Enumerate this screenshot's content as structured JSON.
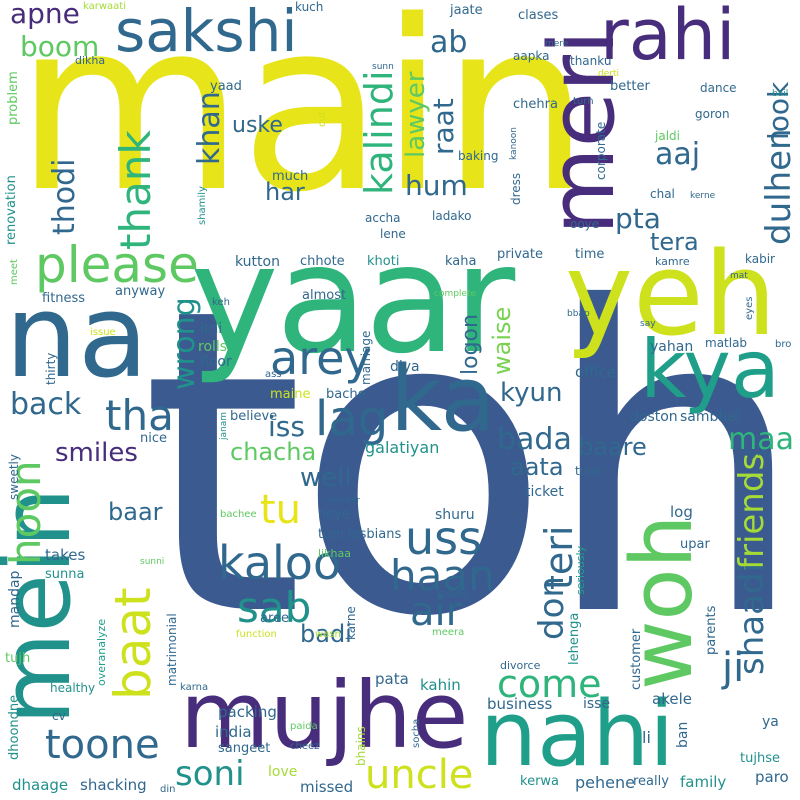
{
  "words": {
    "main": "main",
    "toh": "toh",
    "yaar": "yaar",
    "yeh": "yeh",
    "mein": "mein",
    "na": "na",
    "meri": "meri",
    "mujhe": "mujhe",
    "nahi": "nahi",
    "woh": "woh",
    "kya": "kya",
    "ka": "ka",
    "rahi": "rahi",
    "sakshi": "sakshi",
    "please": "please",
    "baat": "baat",
    "hoon": "hoon",
    "kalindi": "kalindi",
    "thank": "thank",
    "lag": "lag",
    "arey": "arey",
    "tha": "tha",
    "uss": "uss",
    "kaloo": "kaloo",
    "haan": "haan",
    "air": "air",
    "sab": "sab",
    "soni": "soni",
    "toone": "toone",
    "uncle": "uncle",
    "come": "come",
    "ji": "ji",
    "tu": "tu",
    "friends": "friends",
    "shaadi": "shaadi",
    "teri": "teri",
    "don": "don",
    "dulhen": "dulhen",
    "look": "look",
    "boom": "boom",
    "apne": "apne",
    "ab": "ab",
    "aaj": "aaj",
    "hum": "hum",
    "khan": "khan",
    "thodi": "thodi",
    "lawyer": "lawyer",
    "raat": "raat",
    "uske": "uske",
    "har": "har",
    "pta": "pta",
    "tera": "tera",
    "wrong": "wrong",
    "back": "back",
    "iss": "iss",
    "chacha": "chacha",
    "smiles": "smiles",
    "well": "well",
    "kyun": "kyun",
    "bada": "bada",
    "maa": "maa",
    "aata": "aata",
    "baare": "baare",
    "waise": "waise",
    "logon": "logon",
    "baar": "baar",
    "galatiyan": "galatiyan",
    "badi": "badi",
    "pehene": "pehene",
    "business": "business",
    "akele": "akele",
    "packing": "packing",
    "india": "india",
    "sangeet": "sangeet",
    "shacking": "shacking",
    "dhaage": "dhaage",
    "missed": "missed",
    "kerwa": "kerwa",
    "really": "really",
    "family": "family",
    "paro": "paro",
    "tujhse": "tujhse",
    "li": "li",
    "ban": "ban",
    "ya": "ya",
    "customer": "customer",
    "parents": "parents",
    "lehenga": "lehenga",
    "seriously": "seriously",
    "shuru": "shuru",
    "hoye": "hoye",
    "tum": "tum",
    "lesbians": "lesbians",
    "takes": "takes",
    "sunna": "sunna",
    "mandap": "mandap",
    "tujh": "tujh",
    "dhoondne": "dhoondne",
    "healthy": "healthy",
    "cv": "cv",
    "overanalyze": "overanalyze",
    "matrimonial": "matrimonial",
    "karna": "karna",
    "paida": "paida",
    "cheez": "cheez",
    "din": "din",
    "love": "love",
    "bhains": "bhains",
    "socha": "socha",
    "pata": "pata",
    "kahin": "kahin",
    "isse": "isse",
    "divorce": "divorce",
    "meera": "meera",
    "wasn": "wasn",
    "function": "function",
    "karne": "karne",
    "made": "made",
    "aree": "aree",
    "likhaa": "likhaa",
    "number": "number",
    "sunni": "sunni",
    "bachee": "bachee",
    "ticket": "ticket",
    "log": "log",
    "upar": "upar",
    "tune": "tune",
    "doston": "doston",
    "sambhal": "sambhal",
    "office": "office",
    "diya": "diya",
    "bache": "bache",
    "maine": "maine",
    "believe": "believe",
    "nice": "nice",
    "sweetly": "sweetly",
    "janam": "janam",
    "thirty": "thirty",
    "floor": "floor",
    "rolls": "rolls",
    "itni": "itni",
    "ass": "ass",
    "yahan": "yahan",
    "matlab": "matlab",
    "marriage": "marriage",
    "almost": "almost",
    "keh": "keh",
    "issue": "issue",
    "fitness": "fitness",
    "anyway": "anyway",
    "meet": "meet",
    "kutton": "kutton",
    "chhote": "chhote",
    "khoti": "khoti",
    "kaha": "kaha",
    "private": "private",
    "time": "time",
    "kabir": "kabir",
    "kamre": "kamre",
    "complete": "complete",
    "bbap": "bbap",
    "say": "say",
    "eyes": "eyes",
    "bro": "bro",
    "trying": "trying",
    "lene": "lene",
    "accha": "accha",
    "ladako": "ladako",
    "ooye": "ooye",
    "dress": "dress",
    "kanoon": "kanoon",
    "shamily": "shamily",
    "much": "much",
    "cut": "cut",
    "baking": "baking",
    "jaldi": "jaldi",
    "goron": "goron",
    "chal": "chal",
    "kerne": "kerne",
    "mat": "mat",
    "corporate": "corporate",
    "chehra": "chehra",
    "aapka": "aapka",
    "thanku": "thanku",
    "better": "better",
    "dance": "dance",
    "turn": "turn",
    "derti": "derti",
    "bail": "bail",
    "yaad": "yaad",
    "mere": "mere",
    "clases": "clases",
    "jaate": "jaate",
    "kuch": "kuch",
    "sunn": "sunn",
    "karwaati": "karwaati",
    "dikha": "dikha",
    "problem": "problem",
    "renovation": "renovation"
  },
  "palette": {
    "navy": "#3b5a8f",
    "indigo": "#472d7b",
    "yellow": "#e7e419",
    "green": "#2fb47c",
    "lime": "#a5db36",
    "teal": "#21918c",
    "slate": "#31688e",
    "lightgreen": "#5ec962",
    "sea": "#1f9e89",
    "purple": "#443983",
    "yellowgreen": "#cde11d",
    "grassgreen": "#7ad151",
    "deep": "#440154"
  }
}
